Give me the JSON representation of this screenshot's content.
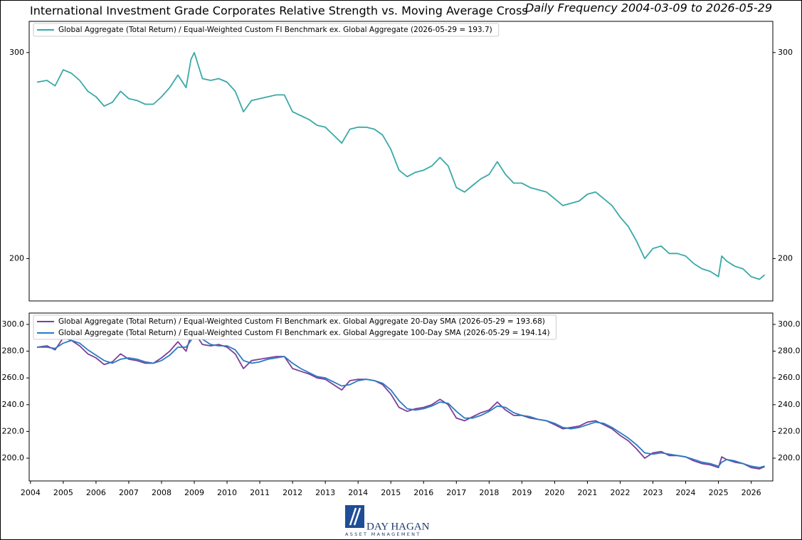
{
  "chart_data": [
    {
      "type": "line",
      "title": "International Investment Grade Corporates Relative Strength vs. Moving Average Cross",
      "subtitle": "Daily Frequency 2004-03-09 to 2026-05-29",
      "log": true,
      "legend": "upper left",
      "xlim": [
        2003.96,
        2026.66
      ],
      "ylim": [
        184,
        319
      ],
      "yticks": [
        200,
        300
      ],
      "x": [
        2004.2,
        2004.5,
        2004.75,
        2005,
        2005.25,
        2005.5,
        2005.75,
        2006,
        2006.25,
        2006.5,
        2006.75,
        2007,
        2007.25,
        2007.5,
        2007.75,
        2008,
        2008.25,
        2008.5,
        2008.75,
        2008.9,
        2009,
        2009.25,
        2009.5,
        2009.75,
        2010,
        2010.25,
        2010.5,
        2010.75,
        2011,
        2011.25,
        2011.5,
        2011.75,
        2012,
        2012.25,
        2012.5,
        2012.75,
        2013,
        2013.25,
        2013.5,
        2013.75,
        2014,
        2014.25,
        2014.5,
        2014.75,
        2015,
        2015.25,
        2015.5,
        2015.75,
        2016,
        2016.25,
        2016.5,
        2016.75,
        2017,
        2017.25,
        2017.5,
        2017.75,
        2018,
        2018.25,
        2018.5,
        2018.75,
        2019,
        2019.25,
        2019.5,
        2019.75,
        2020,
        2020.25,
        2020.5,
        2020.75,
        2021,
        2021.25,
        2021.5,
        2021.75,
        2022,
        2022.25,
        2022.5,
        2022.75,
        2023,
        2023.25,
        2023.5,
        2023.75,
        2024,
        2024.25,
        2024.5,
        2024.75,
        2025,
        2025.1,
        2025.25,
        2025.5,
        2025.75,
        2026,
        2026.25,
        2026.41
      ],
      "series": [
        {
          "name": "Global Aggregate (Total Return) / Equal-Weighted Custom FI Benchmark ex. Global Aggregate (2026-05-29 = 193.7)",
          "color": "#3aa8a8",
          "values": [
            283,
            284,
            281,
            290,
            288,
            284,
            278,
            275,
            270,
            272,
            278,
            274,
            273,
            271,
            271,
            275,
            280,
            287,
            280,
            296,
            300,
            285,
            284,
            285,
            283,
            278,
            267,
            273,
            274,
            275,
            276,
            276,
            267,
            265,
            263,
            260,
            259,
            255,
            251,
            258,
            259,
            259,
            258,
            255,
            248,
            238,
            235,
            237,
            238,
            240,
            244,
            240,
            230,
            228,
            231,
            234,
            236,
            242,
            236,
            232,
            232,
            230,
            229,
            228,
            225,
            222,
            223,
            224,
            227,
            228,
            225,
            222,
            217,
            213,
            207,
            200,
            204,
            205,
            202,
            202,
            201,
            198,
            196,
            195,
            193,
            201,
            199,
            197,
            196,
            193,
            192,
            193.7
          ]
        }
      ]
    },
    {
      "type": "line",
      "legend": "upper left",
      "xlim": [
        2003.96,
        2026.66
      ],
      "xticks": [
        2004,
        2005,
        2006,
        2007,
        2008,
        2009,
        2010,
        2011,
        2012,
        2013,
        2014,
        2015,
        2016,
        2017,
        2018,
        2019,
        2020,
        2021,
        2022,
        2023,
        2024,
        2025,
        2026
      ],
      "ylim": [
        183,
        308.5
      ],
      "yticks": [
        {
          "value": 200,
          "label": "200.0"
        },
        {
          "value": 220,
          "label": "220.0"
        },
        {
          "value": 240,
          "label": "240.0"
        },
        {
          "value": 260,
          "label": "260.0"
        },
        {
          "value": 280,
          "label": "280.0"
        },
        {
          "value": 300,
          "label": "300.0"
        }
      ],
      "x": [
        2004.2,
        2004.5,
        2004.75,
        2005,
        2005.25,
        2005.5,
        2005.75,
        2006,
        2006.25,
        2006.5,
        2006.75,
        2007,
        2007.25,
        2007.5,
        2007.75,
        2008,
        2008.25,
        2008.5,
        2008.75,
        2008.9,
        2009,
        2009.25,
        2009.5,
        2009.75,
        2010,
        2010.25,
        2010.5,
        2010.75,
        2011,
        2011.25,
        2011.5,
        2011.75,
        2012,
        2012.25,
        2012.5,
        2012.75,
        2013,
        2013.25,
        2013.5,
        2013.75,
        2014,
        2014.25,
        2014.5,
        2014.75,
        2015,
        2015.25,
        2015.5,
        2015.75,
        2016,
        2016.25,
        2016.5,
        2016.75,
        2017,
        2017.25,
        2017.5,
        2017.75,
        2018,
        2018.25,
        2018.5,
        2018.75,
        2019,
        2019.25,
        2019.5,
        2019.75,
        2020,
        2020.25,
        2020.5,
        2020.75,
        2021,
        2021.25,
        2021.5,
        2021.75,
        2022,
        2022.25,
        2022.5,
        2022.75,
        2023,
        2023.25,
        2023.5,
        2023.75,
        2024,
        2024.25,
        2024.5,
        2024.75,
        2025,
        2025.1,
        2025.25,
        2025.5,
        2025.75,
        2026,
        2026.25,
        2026.41
      ],
      "series": [
        {
          "name": "Global Aggregate (Total Return) / Equal-Weighted Custom FI Benchmark ex. Global Aggregate 20-Day SMA (2026-05-29 = 193.68)",
          "color": "#7b3f98",
          "values": [
            283,
            284,
            281,
            290,
            288,
            284,
            278,
            275,
            270,
            272,
            278,
            274,
            273,
            271,
            271,
            275,
            280,
            287,
            280,
            292,
            294,
            285,
            284,
            285,
            283,
            278,
            267,
            273,
            274,
            275,
            276,
            276,
            267,
            265,
            263,
            260,
            259,
            255,
            251,
            258,
            259,
            259,
            258,
            255,
            248,
            238,
            235,
            237,
            238,
            240,
            244,
            240,
            230,
            228,
            231,
            234,
            236,
            242,
            236,
            232,
            232,
            230,
            229,
            228,
            225,
            222,
            223,
            224,
            227,
            228,
            225,
            222,
            217,
            213,
            207,
            200,
            204,
            205,
            202,
            202,
            201,
            198,
            196,
            195,
            193,
            201,
            199,
            197,
            196,
            193,
            192,
            193.68
          ]
        },
        {
          "name": "Global Aggregate (Total Return) / Equal-Weighted Custom FI Benchmark ex. Global Aggregate 100-Day SMA (2026-05-29 = 194.14)",
          "color": "#2a7bc2",
          "values": [
            283,
            283,
            282,
            286,
            288,
            286,
            281,
            277,
            273,
            271,
            274,
            275,
            274,
            272,
            271,
            273,
            277,
            283,
            283,
            288,
            293,
            289,
            285,
            284,
            284,
            281,
            273,
            271,
            272,
            274,
            275,
            276,
            271,
            267,
            264,
            261,
            260,
            257,
            254,
            255,
            258,
            259,
            258,
            256,
            251,
            243,
            237,
            236,
            237,
            239,
            242,
            241,
            235,
            230,
            230,
            232,
            235,
            239,
            238,
            234,
            232,
            231,
            229,
            228,
            226,
            223,
            222,
            223,
            225,
            227,
            226,
            223,
            219,
            215,
            210,
            204,
            203,
            204,
            203,
            202,
            201,
            199,
            197,
            196,
            194,
            197,
            199,
            198,
            196,
            194,
            193,
            194.14
          ]
        }
      ]
    }
  ],
  "logo": {
    "name": "DAY HAGAN",
    "tagline": "ASSET MANAGEMENT"
  }
}
